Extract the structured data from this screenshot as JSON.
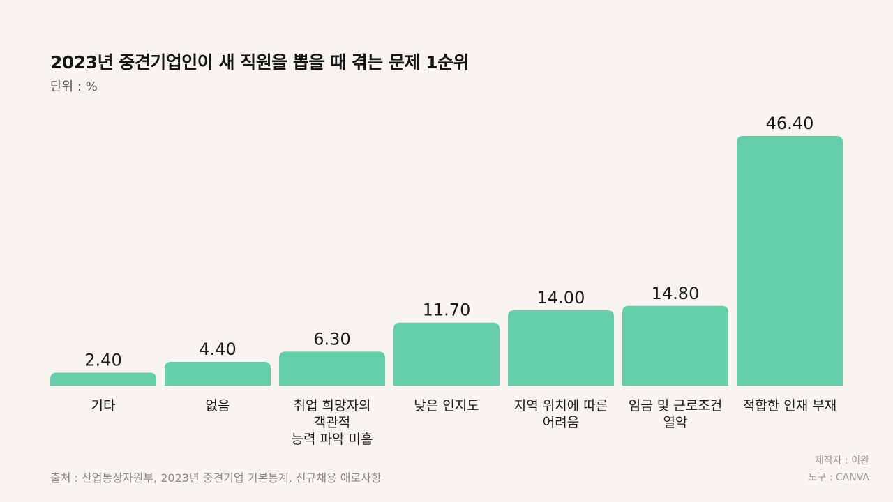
{
  "chart_data": {
    "type": "bar",
    "title": "2023년 중견기업인이 새 직원을 뽑을 때 겪는 문제 1순위",
    "unit_label": "단위 : %",
    "categories": [
      [
        "기타"
      ],
      [
        "없음"
      ],
      [
        "취업 희망자의",
        "객관적",
        "능력 파악 미흡"
      ],
      [
        "낮은 인지도"
      ],
      [
        "지역 위치에 따른",
        "어려움"
      ],
      [
        "임금 및 근로조건",
        "열악"
      ],
      [
        "적합한 인재 부재"
      ]
    ],
    "values": [
      2.4,
      4.4,
      6.3,
      11.7,
      14.0,
      14.8,
      46.4
    ],
    "value_labels": [
      "2.40",
      "4.40",
      "6.30",
      "11.70",
      "14.00",
      "14.80",
      "46.40"
    ],
    "ylim": [
      0,
      46.4
    ],
    "grid": false,
    "bar_color": "#66cdaa"
  },
  "footer": {
    "source": "출처 : 산업통상자원부, 2023년 중견기업 기본통계, 신규채용 애로사항",
    "maker": "제작자 : 이완",
    "tool": "도구 : CANVA"
  }
}
